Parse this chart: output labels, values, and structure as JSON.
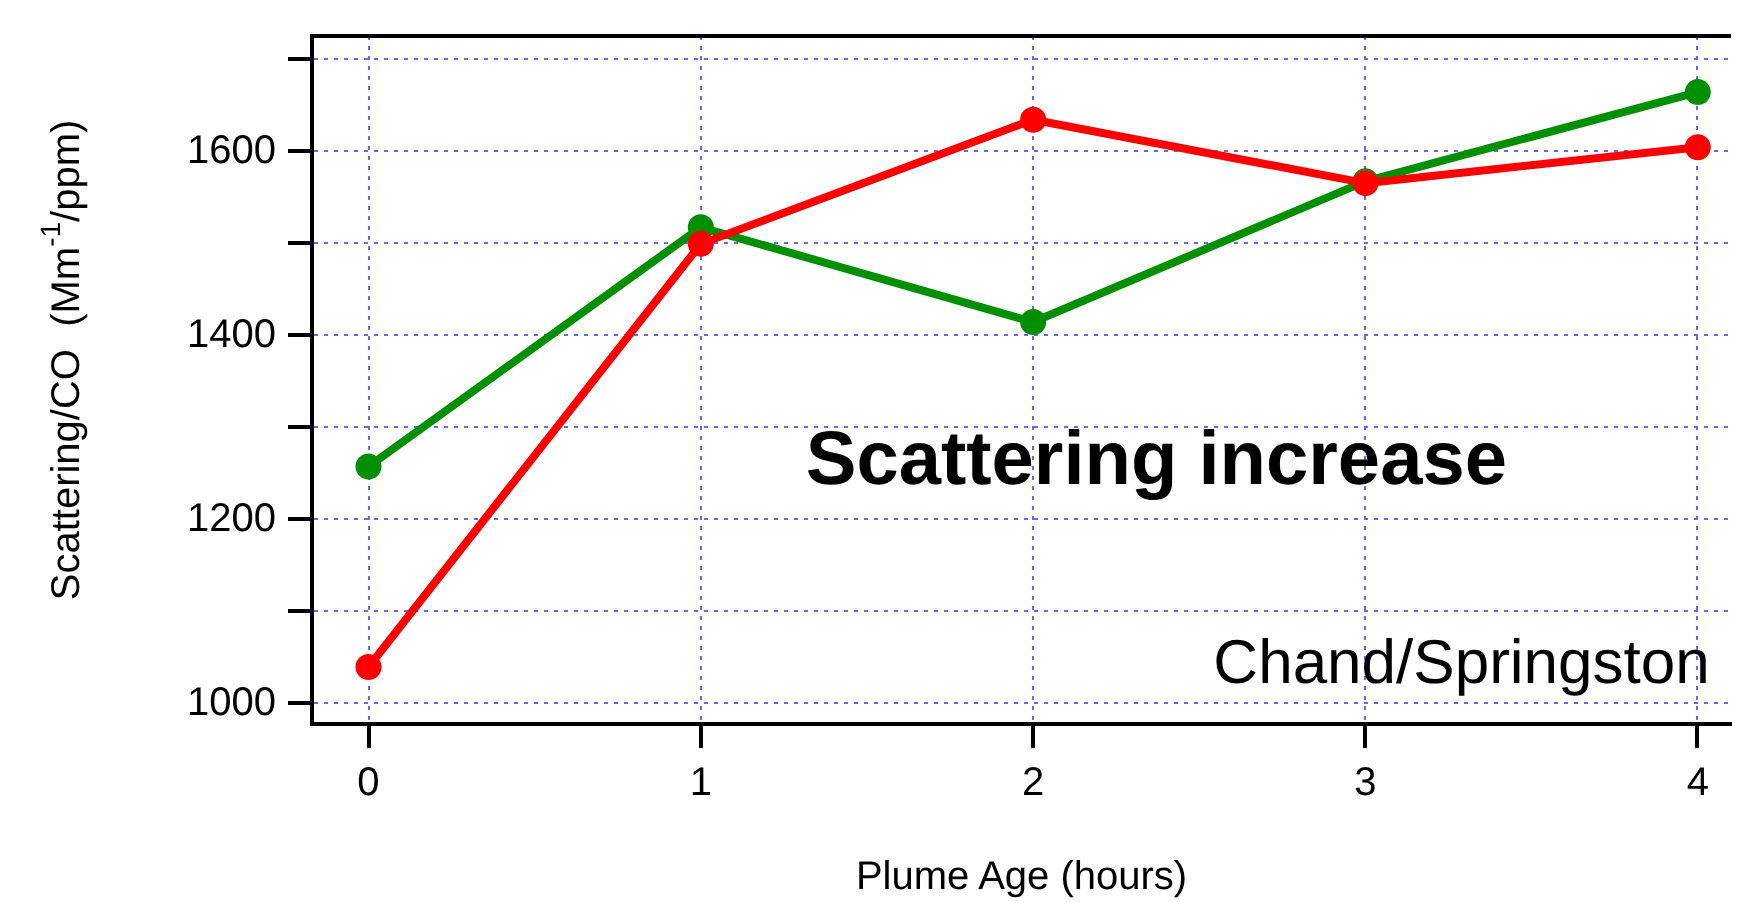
{
  "chart_data": {
    "type": "line",
    "xlabel": "Plume Age (hours)",
    "ylabel": "Scattering/CO  (Mm$^{-1}$/ppm)",
    "x": [
      0,
      1,
      2,
      3,
      4
    ],
    "series": [
      {
        "color": "#ff0000",
        "values": [
          1040,
          1500,
          1635,
          1566,
          1605
        ]
      },
      {
        "color": "#008f00",
        "values": [
          1258,
          1518,
          1415,
          1568,
          1665
        ]
      }
    ],
    "xlim": [
      -0.17,
      4.1
    ],
    "xticks": [
      0,
      1,
      2,
      3,
      4
    ],
    "ylim": [
      978,
      1726
    ],
    "yticks": [
      1000,
      {
        "value": 1100,
        "label": null
      },
      1200,
      {
        "value": 1300,
        "label": null
      },
      1400,
      {
        "value": 1500,
        "label": null
      },
      1600,
      {
        "value": 1700,
        "label": null
      }
    ],
    "grid": true,
    "legend": false,
    "marker": "circle",
    "line_style": "solid",
    "annotations": [
      "Scattering increase",
      "Chand/Springston"
    ]
  }
}
